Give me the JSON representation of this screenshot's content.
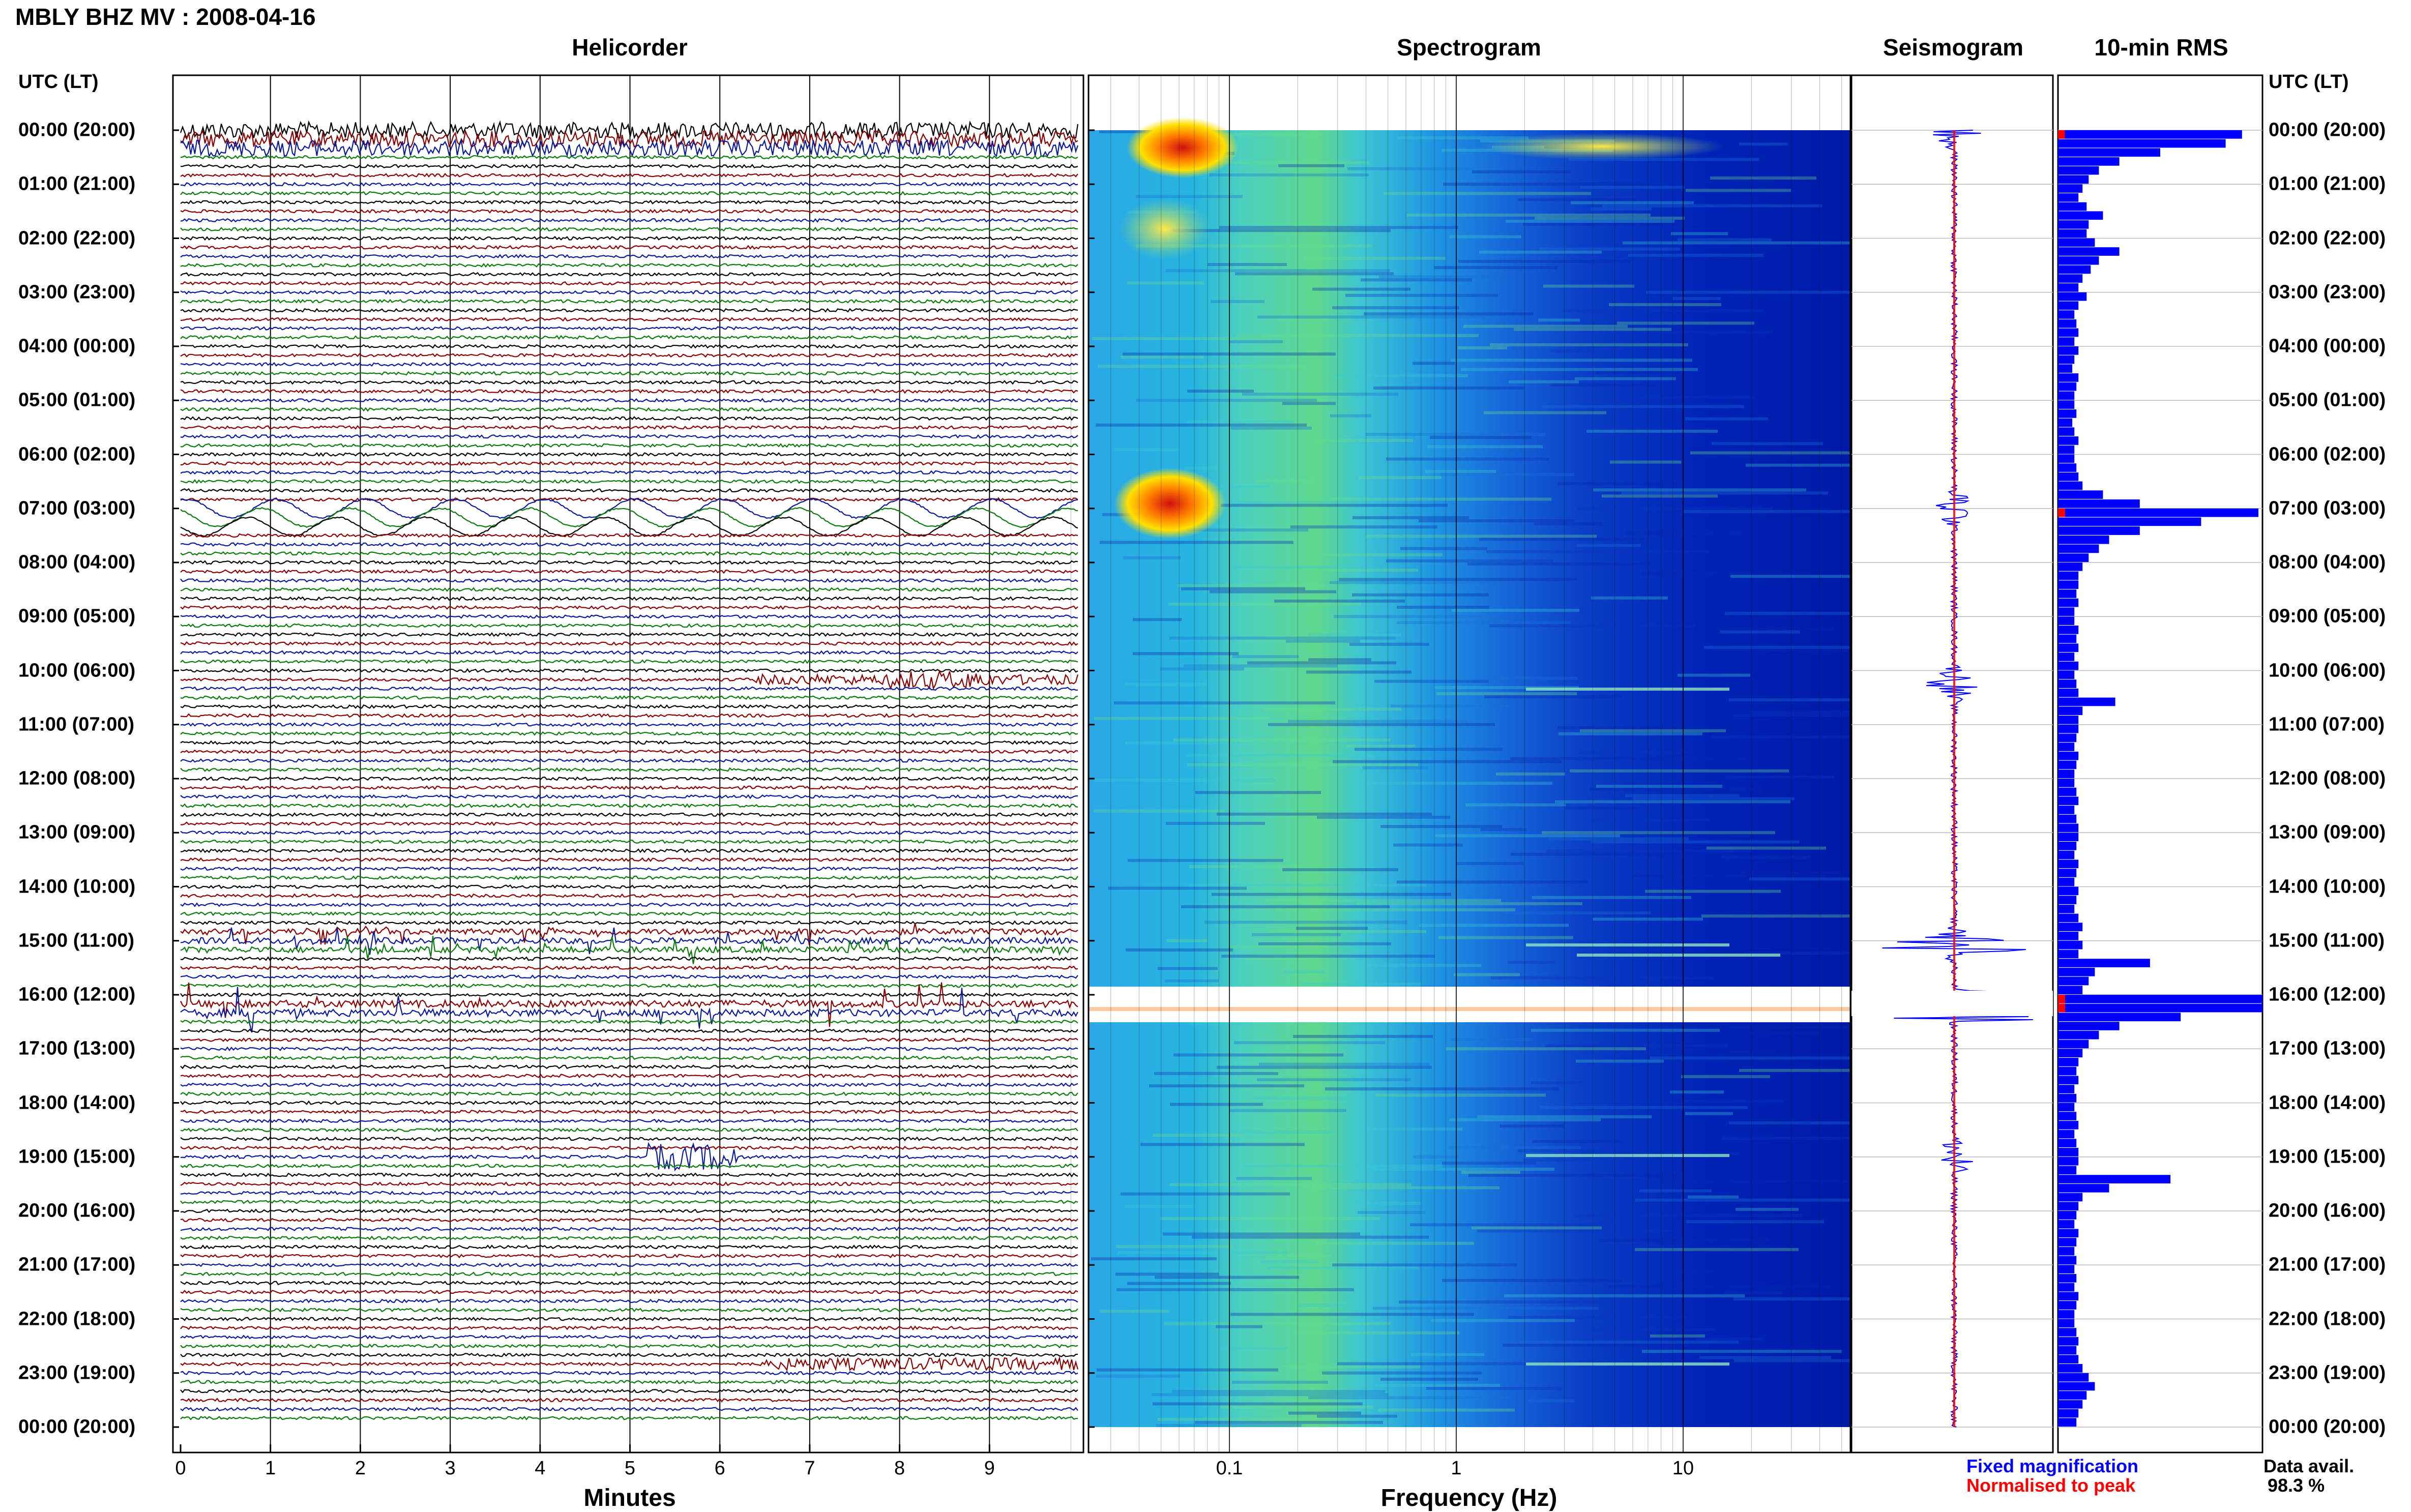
{
  "header": {
    "title": "MBLY BHZ MV : 2008-04-16",
    "utc_left": "UTC (LT)",
    "utc_right": "UTC (LT)"
  },
  "panels": {
    "helicorder": "Helicorder",
    "spectrogram": "Spectrogram",
    "seismogram": "Seismogram",
    "rms": "10-min RMS"
  },
  "time_labels": [
    "00:00 (20:00)",
    "01:00 (21:00)",
    "02:00 (22:00)",
    "03:00 (23:00)",
    "04:00 (00:00)",
    "05:00 (01:00)",
    "06:00 (02:00)",
    "07:00 (03:00)",
    "08:00 (04:00)",
    "09:00 (05:00)",
    "10:00 (06:00)",
    "11:00 (07:00)",
    "12:00 (08:00)",
    "13:00 (09:00)",
    "14:00 (10:00)",
    "15:00 (11:00)",
    "16:00 (12:00)",
    "17:00 (13:00)",
    "18:00 (14:00)",
    "19:00 (15:00)",
    "20:00 (16:00)",
    "21:00 (17:00)",
    "22:00 (18:00)",
    "23:00 (19:00)",
    "00:00 (20:00)"
  ],
  "axes": {
    "minutes_label": "Minutes",
    "minutes_ticks": [
      "0",
      "1",
      "2",
      "3",
      "4",
      "5",
      "6",
      "7",
      "8",
      "9"
    ],
    "frequency_label": "Frequency (Hz)",
    "frequency_ticks": [
      "0.1",
      "1",
      "10"
    ]
  },
  "legend": {
    "fixed": "Fixed magnification",
    "normalised": "Normalised to peak",
    "data_avail_label": "Data avail.",
    "data_avail_value": "98.3 %"
  },
  "colors": {
    "trace_black": "#000000",
    "trace_red": "#8b0000",
    "trace_blue": "#0a1a9c",
    "trace_green": "#0a7a0a",
    "fixed": "#0000ff",
    "normalised": "#ff0000"
  },
  "chart_data": [
    {
      "type": "line",
      "panel": "Helicorder",
      "x_unit": "minutes",
      "xlim": [
        0,
        10
      ],
      "rows_per_hour": 6,
      "notable_events": [
        {
          "time_utc": "00:00",
          "note": "large amplitude signal"
        },
        {
          "time_utc": "07:00",
          "note": "large amplitude long-period oscillation"
        },
        {
          "time_utc": "10:10",
          "minutes": [
            6.5,
            10
          ],
          "note": "tremor burst"
        },
        {
          "time_utc": "15:00",
          "note": "spiky signals"
        },
        {
          "time_utc": "16:10",
          "note": "large offsets / clipped signals"
        },
        {
          "time_utc": "19:00",
          "minutes": [
            5.2,
            6.2
          ],
          "note": "event"
        },
        {
          "time_utc": "22:50",
          "minutes": [
            6.5,
            10
          ],
          "note": "tremor burst"
        }
      ]
    },
    {
      "type": "heatmap",
      "panel": "Spectrogram",
      "x_scale": "log",
      "xlim": [
        0.02,
        50
      ],
      "xlabel": "Frequency (Hz)",
      "colormap": "jet",
      "data_gap_utc": [
        "16:00",
        "16:20"
      ]
    },
    {
      "type": "line",
      "panel": "Seismogram",
      "series": [
        {
          "name": "Fixed magnification"
        },
        {
          "name": "Normalised to peak"
        }
      ],
      "peak_hours": [
        0.1,
        7.0,
        10.25,
        15.05,
        16.25,
        19.0
      ]
    },
    {
      "type": "bar",
      "panel": "10-min RMS",
      "orientation": "horizontal",
      "bins_per_hour": 6,
      "values": [
        0.9,
        0.82,
        0.5,
        0.3,
        0.2,
        0.15,
        0.12,
        0.1,
        0.14,
        0.22,
        0.15,
        0.14,
        0.18,
        0.3,
        0.2,
        0.16,
        0.12,
        0.1,
        0.14,
        0.1,
        0.08,
        0.09,
        0.1,
        0.08,
        0.1,
        0.08,
        0.07,
        0.1,
        0.09,
        0.08,
        0.08,
        0.09,
        0.07,
        0.08,
        0.1,
        0.08,
        0.08,
        0.09,
        0.1,
        0.12,
        0.22,
        0.4,
        0.98,
        0.7,
        0.4,
        0.25,
        0.2,
        0.15,
        0.12,
        0.1,
        0.1,
        0.09,
        0.1,
        0.08,
        0.08,
        0.1,
        0.09,
        0.1,
        0.08,
        0.1,
        0.08,
        0.09,
        0.1,
        0.28,
        0.12,
        0.1,
        0.1,
        0.09,
        0.08,
        0.1,
        0.09,
        0.08,
        0.08,
        0.09,
        0.1,
        0.08,
        0.09,
        0.1,
        0.1,
        0.09,
        0.08,
        0.1,
        0.09,
        0.08,
        0.1,
        0.09,
        0.08,
        0.1,
        0.12,
        0.1,
        0.12,
        0.1,
        0.45,
        0.18,
        0.15,
        0.12,
        1.0,
        1.0,
        0.6,
        0.3,
        0.2,
        0.15,
        0.12,
        0.1,
        0.09,
        0.1,
        0.08,
        0.09,
        0.08,
        0.09,
        0.1,
        0.08,
        0.09,
        0.1,
        0.1,
        0.09,
        0.55,
        0.25,
        0.12,
        0.1,
        0.09,
        0.08,
        0.1,
        0.09,
        0.08,
        0.09,
        0.08,
        0.09,
        0.08,
        0.1,
        0.09,
        0.08,
        0.08,
        0.09,
        0.1,
        0.09,
        0.1,
        0.12,
        0.15,
        0.18,
        0.14,
        0.12,
        0.1,
        0.09
      ]
    }
  ]
}
